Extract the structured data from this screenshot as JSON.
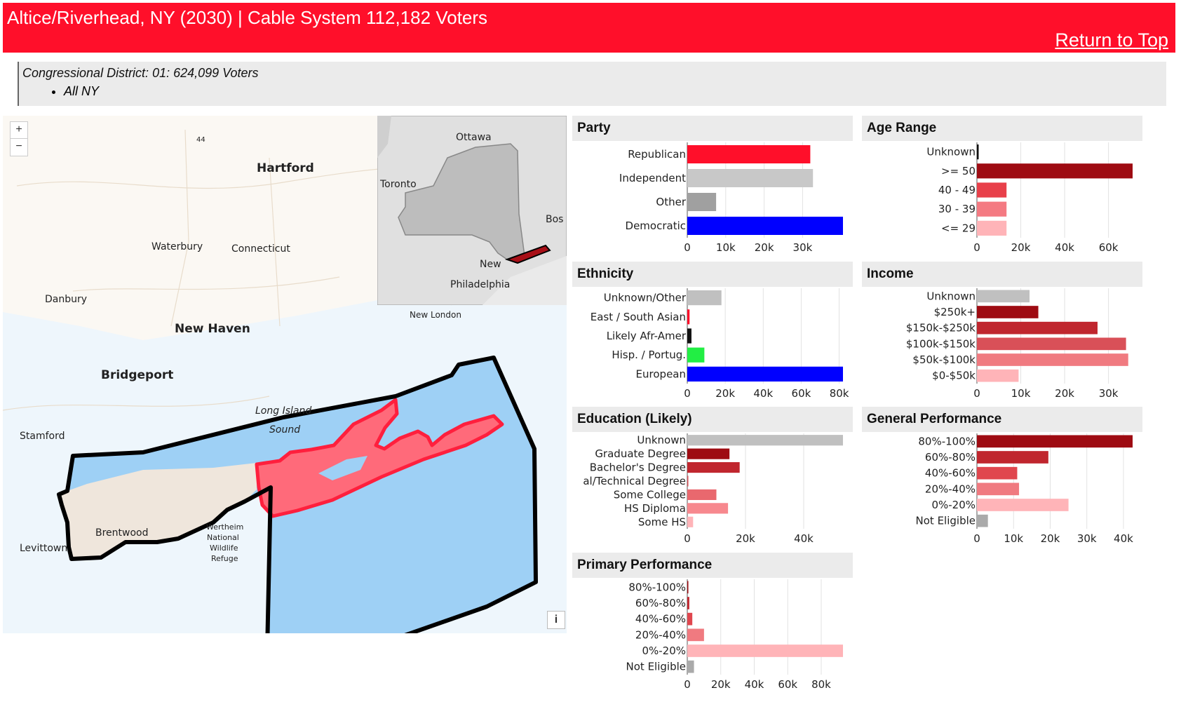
{
  "header": {
    "title": "Altice/Riverhead, NY (2030) | Cable System 112,182 Voters",
    "return_link": "Return to Top"
  },
  "district": {
    "line": "Congressional District: 01: 624,099 Voters",
    "items": [
      "All NY"
    ]
  },
  "map": {
    "zoom_in": "+",
    "zoom_out": "−",
    "info": "i",
    "labels": {
      "hartford": "Hartford",
      "waterbury": "Waterbury",
      "connecticut": "Connecticut",
      "danbury": "Danbury",
      "new_haven": "New Haven",
      "new_london": "New London",
      "bridgeport": "Bridgeport",
      "stamford": "Stamford",
      "long_island": "Long Island",
      "sound": "Sound",
      "brentwood": "Brentwood",
      "levittown": "Levittown",
      "wertheim_1": "Wertheim",
      "wertheim_2": "National",
      "wertheim_3": "Wildlife",
      "wertheim_4": "Refuge",
      "route": "44"
    },
    "inset_labels": {
      "ottawa": "Ottawa",
      "toronto": "Toronto",
      "boston": "Bos",
      "new_york": "New",
      "philadelphia": "Philadelphia"
    },
    "colors": {
      "water": "#9ed0f5",
      "district_fill": "#ff6a7a",
      "district_stroke": "#ff1f3d",
      "land": "#efe6dc",
      "boundary": "#000000"
    }
  },
  "chart_data": [
    {
      "id": "party",
      "type": "bar",
      "title": "Party",
      "orientation": "horizontal",
      "categories": [
        "Republican",
        "Independent",
        "Other",
        "Democratic"
      ],
      "values": [
        32000,
        32700,
        7500,
        40500
      ],
      "colors": [
        "#ff0f2a",
        "#c8c8c8",
        "#a0a0a0",
        "#0000ff"
      ],
      "ticks": [
        0,
        10000,
        20000,
        30000
      ],
      "tick_labels": [
        "0",
        "10k",
        "20k",
        "30k"
      ],
      "xlim": [
        0,
        40500
      ]
    },
    {
      "id": "age",
      "type": "bar",
      "title": "Age Range",
      "orientation": "horizontal",
      "categories": [
        "Unknown",
        ">= 50",
        "40 - 49",
        "30 - 39",
        "<= 29"
      ],
      "values": [
        800,
        71000,
        13500,
        13500,
        13500
      ],
      "colors": [
        "#111111",
        "#9e0b12",
        "#e8404a",
        "#f47a82",
        "#ffb4b8"
      ],
      "ticks": [
        0,
        20000,
        40000,
        60000
      ],
      "tick_labels": [
        "0",
        "20k",
        "40k",
        "60k"
      ],
      "xlim": [
        0,
        71000
      ]
    },
    {
      "id": "ethnicity",
      "type": "bar",
      "title": "Ethnicity",
      "orientation": "horizontal",
      "categories": [
        "Unknown/Other",
        "East / South Asian",
        "Likely Afr-Amer",
        "Hisp. / Portug.",
        "European"
      ],
      "values": [
        18000,
        1200,
        2200,
        9000,
        82000
      ],
      "colors": [
        "#c0c0c0",
        "#ff0f2a",
        "#111111",
        "#22ee44",
        "#0000ff"
      ],
      "ticks": [
        0,
        20000,
        40000,
        60000,
        80000
      ],
      "tick_labels": [
        "0",
        "20k",
        "40k",
        "60k",
        "80k"
      ],
      "xlim": [
        0,
        82000
      ]
    },
    {
      "id": "income",
      "type": "bar",
      "title": "Income",
      "orientation": "horizontal",
      "categories": [
        "Unknown",
        "$250k+",
        "$150k-$250k",
        "$100k-$150k",
        "$50k-$100k",
        "$0-$50k"
      ],
      "values": [
        12000,
        14000,
        27500,
        34000,
        34500,
        9500
      ],
      "colors": [
        "#c0c0c0",
        "#9e0b12",
        "#c0262e",
        "#d95058",
        "#f07a80",
        "#ffb4b8"
      ],
      "ticks": [
        0,
        10000,
        20000,
        30000
      ],
      "tick_labels": [
        "0",
        "10k",
        "20k",
        "30k"
      ],
      "xlim": [
        0,
        35500
      ]
    },
    {
      "id": "education",
      "type": "bar",
      "title": "Education (Likely)",
      "orientation": "horizontal",
      "categories": [
        "Unknown",
        "Graduate Degree",
        "Bachelor's Degree",
        "al/Technical Degree",
        "Some College",
        "HS Diploma",
        "Some HS"
      ],
      "values": [
        53500,
        14500,
        18000,
        100,
        10000,
        14000,
        2000
      ],
      "colors": [
        "#c0c0c0",
        "#9e0b12",
        "#c0262e",
        "#d95058",
        "#e9686e",
        "#f7888e",
        "#ffb4b8"
      ],
      "ticks": [
        0,
        20000,
        40000
      ],
      "tick_labels": [
        "0",
        "20k",
        "40k"
      ],
      "xlim": [
        0,
        53500
      ]
    },
    {
      "id": "general",
      "type": "bar",
      "title": "General Performance",
      "orientation": "horizontal",
      "categories": [
        "80%-100%",
        "60%-80%",
        "40%-60%",
        "20%-40%",
        "0%-20%",
        "Not Eligible"
      ],
      "values": [
        42500,
        19500,
        11000,
        11500,
        25000,
        3000
      ],
      "colors": [
        "#9e0b12",
        "#c0262e",
        "#e0464e",
        "#f07a80",
        "#ffb4b8",
        "#aaaaaa"
      ],
      "ticks": [
        0,
        10000,
        20000,
        30000,
        40000
      ],
      "tick_labels": [
        "0",
        "10k",
        "20k",
        "30k",
        "40k"
      ],
      "xlim": [
        0,
        42500
      ]
    },
    {
      "id": "primary",
      "type": "bar",
      "title": "Primary Performance",
      "orientation": "horizontal",
      "categories": [
        "80%-100%",
        "60%-80%",
        "40%-60%",
        "20%-40%",
        "0%-20%",
        "Not Eligible"
      ],
      "values": [
        600,
        1200,
        3000,
        10000,
        93000,
        4000
      ],
      "colors": [
        "#9e0b12",
        "#c0262e",
        "#e0464e",
        "#f07a80",
        "#ffb4b8",
        "#aaaaaa"
      ],
      "ticks": [
        0,
        20000,
        40000,
        60000,
        80000
      ],
      "tick_labels": [
        "0",
        "20k",
        "40k",
        "60k",
        "80k"
      ],
      "xlim": [
        0,
        93000
      ]
    }
  ]
}
